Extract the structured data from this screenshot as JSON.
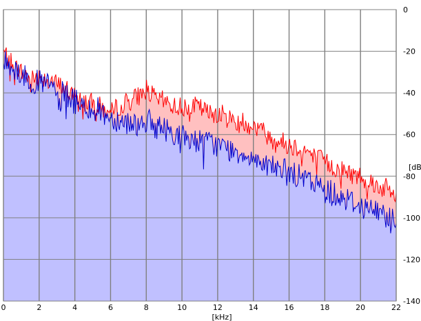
{
  "chart_data": {
    "type": "area",
    "title": "",
    "xlabel": "[kHz]",
    "ylabel": "[dB]",
    "xlim": [
      0,
      22
    ],
    "ylim": [
      -140,
      0
    ],
    "x_ticks": [
      0,
      2,
      4,
      6,
      8,
      10,
      12,
      14,
      16,
      18,
      20,
      22
    ],
    "y_ticks": [
      0,
      -20,
      -40,
      -60,
      -80,
      -100,
      -120,
      -140
    ],
    "grid": true,
    "x": [
      0,
      0.5,
      1,
      1.5,
      2,
      2.5,
      3,
      3.5,
      4,
      4.5,
      5,
      5.5,
      6,
      6.5,
      7,
      7.5,
      8,
      8.5,
      9,
      9.5,
      10,
      10.5,
      11,
      11.5,
      12,
      12.5,
      13,
      13.5,
      14,
      14.5,
      15,
      15.5,
      16,
      16.5,
      17,
      17.5,
      18,
      18.5,
      19,
      19.5,
      20,
      20.5,
      21,
      21.5,
      22
    ],
    "series": [
      {
        "color": "#ff0000",
        "fill": "#ffc0c0",
        "values": [
          -20,
          -26,
          -30,
          -33,
          -32,
          -33,
          -36,
          -38,
          -42,
          -44,
          -45,
          -47,
          -50,
          -46,
          -44,
          -42,
          -38,
          -43,
          -44,
          -46,
          -47,
          -46,
          -47,
          -50,
          -49,
          -52,
          -53,
          -54,
          -56,
          -58,
          -62,
          -63,
          -65,
          -66,
          -68,
          -71,
          -73,
          -76,
          -77,
          -79,
          -80,
          -82,
          -85,
          -86,
          -90
        ]
      },
      {
        "color": "#0000cc",
        "fill": "#c0c0ff",
        "values": [
          -25,
          -27,
          -31,
          -34,
          -35,
          -36,
          -39,
          -41,
          -44,
          -46,
          -47,
          -49,
          -52,
          -53,
          -54,
          -55,
          -53,
          -56,
          -57,
          -59,
          -61,
          -62,
          -63,
          -64,
          -65,
          -67,
          -68,
          -69,
          -71,
          -73,
          -75,
          -77,
          -78,
          -80,
          -82,
          -84,
          -86,
          -88,
          -90,
          -92,
          -94,
          -96,
          -97,
          -99,
          -101
        ]
      }
    ]
  }
}
